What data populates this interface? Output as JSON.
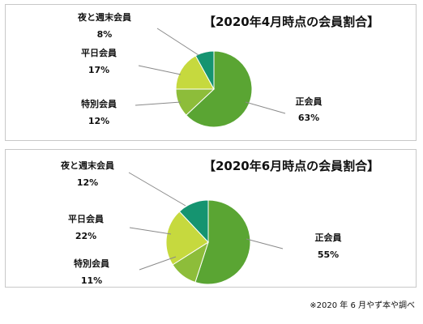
{
  "chart_data": [
    {
      "type": "pie",
      "title": "【2020年4月時点の会員割合】",
      "slices": [
        {
          "name": "正会員",
          "value": 63,
          "label": "63%",
          "color": "#5aa533"
        },
        {
          "name": "特別会員",
          "value": 12,
          "label": "12%",
          "color": "#8dbd3a"
        },
        {
          "name": "平日会員",
          "value": 17,
          "label": "17%",
          "color": "#c6d93e"
        },
        {
          "name": "夜と週末会員",
          "value": 8,
          "label": "8%",
          "color": "#159470"
        }
      ]
    },
    {
      "type": "pie",
      "title": "【2020年6月時点の会員割合】",
      "slices": [
        {
          "name": "正会員",
          "value": 55,
          "label": "55%",
          "color": "#5aa533"
        },
        {
          "name": "特別会員",
          "value": 11,
          "label": "11%",
          "color": "#8dbd3a"
        },
        {
          "name": "平日会員",
          "value": 22,
          "label": "22%",
          "color": "#c6d93e"
        },
        {
          "name": "夜と週末会員",
          "value": 12,
          "label": "12%",
          "color": "#159470"
        }
      ]
    }
  ],
  "source_note": "※2020 年 6 月やず本や調べ"
}
